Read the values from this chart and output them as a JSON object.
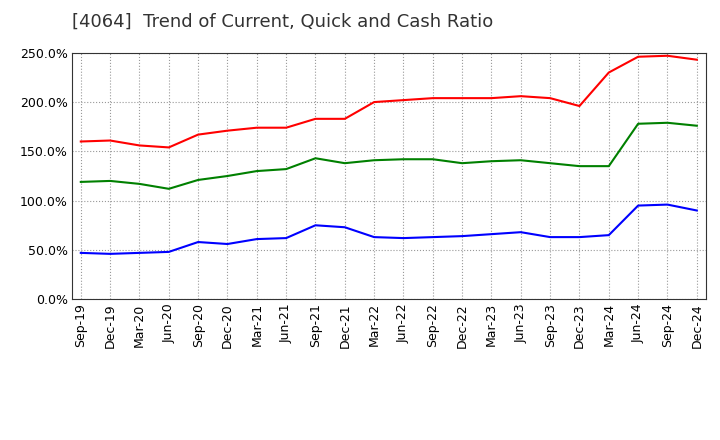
{
  "title": "[4064]  Trend of Current, Quick and Cash Ratio",
  "x_labels": [
    "Sep-19",
    "Dec-19",
    "Mar-20",
    "Jun-20",
    "Sep-20",
    "Dec-20",
    "Mar-21",
    "Jun-21",
    "Sep-21",
    "Dec-21",
    "Mar-22",
    "Jun-22",
    "Sep-22",
    "Dec-22",
    "Mar-23",
    "Jun-23",
    "Sep-23",
    "Dec-23",
    "Mar-24",
    "Jun-24",
    "Sep-24",
    "Dec-24"
  ],
  "current_ratio": [
    1.6,
    1.61,
    1.56,
    1.54,
    1.67,
    1.71,
    1.74,
    1.74,
    1.83,
    1.83,
    2.0,
    2.02,
    2.04,
    2.04,
    2.04,
    2.06,
    2.04,
    1.96,
    2.3,
    2.46,
    2.47,
    2.43
  ],
  "quick_ratio": [
    1.19,
    1.2,
    1.17,
    1.12,
    1.21,
    1.25,
    1.3,
    1.32,
    1.43,
    1.38,
    1.41,
    1.42,
    1.42,
    1.38,
    1.4,
    1.41,
    1.38,
    1.35,
    1.35,
    1.78,
    1.79,
    1.76
  ],
  "cash_ratio": [
    0.47,
    0.46,
    0.47,
    0.48,
    0.58,
    0.56,
    0.61,
    0.62,
    0.75,
    0.73,
    0.63,
    0.62,
    0.63,
    0.64,
    0.66,
    0.68,
    0.63,
    0.63,
    0.65,
    0.95,
    0.96,
    0.9
  ],
  "current_color": "#FF0000",
  "quick_color": "#008000",
  "cash_color": "#0000FF",
  "ylim": [
    0.0,
    2.5
  ],
  "yticks": [
    0.0,
    0.5,
    1.0,
    1.5,
    2.0,
    2.5
  ],
  "background_color": "#ffffff",
  "grid_color": "#999999",
  "title_fontsize": 13,
  "legend_fontsize": 10,
  "tick_fontsize": 9
}
